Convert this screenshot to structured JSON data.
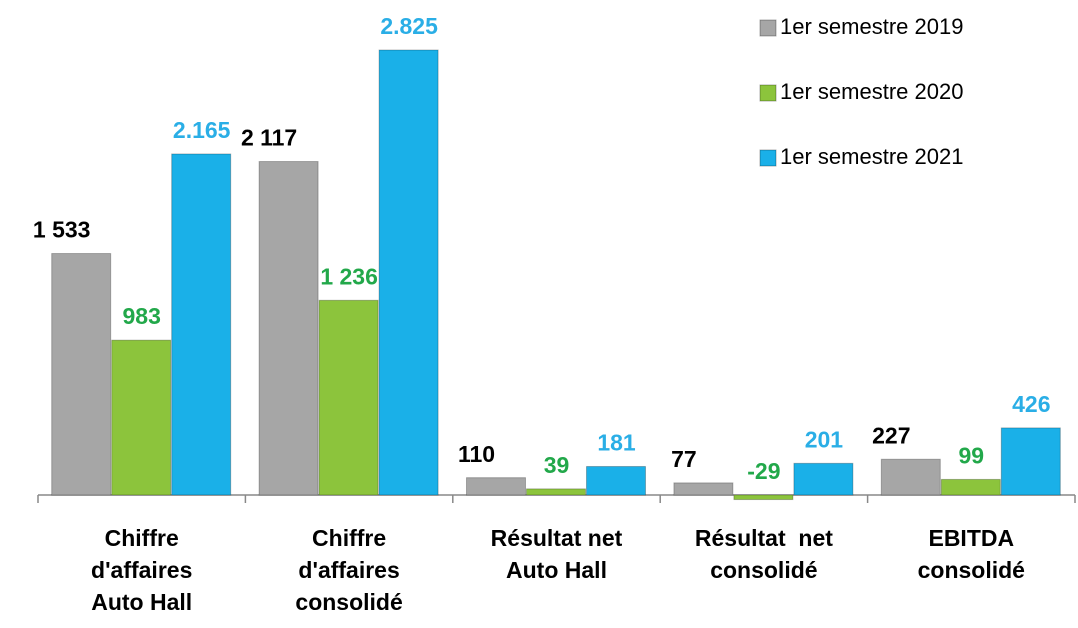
{
  "chart_data": {
    "type": "bar",
    "categories": [
      "Chiffre\nd'affaires\nAuto Hall",
      "Chiffre\nd'affaires\nconsolidé",
      "Résultat net\nAuto Hall",
      "Résultat  net\nconsolidé",
      "EBITDA\nconsolidé"
    ],
    "series": [
      {
        "name": "1er semestre 2019",
        "color": "#a6a6a6",
        "label_color": "#000000",
        "values": [
          1533,
          2117,
          110,
          77,
          227
        ],
        "value_labels": [
          "1 533",
          "2 117",
          "110",
          "77",
          "227"
        ]
      },
      {
        "name": "1er semestre 2020",
        "color": "#8cc43c",
        "label_color": "#22a84a",
        "values": [
          983,
          1236,
          39,
          -29,
          99
        ],
        "value_labels": [
          "983",
          "1 236",
          "39",
          "-29",
          "99"
        ]
      },
      {
        "name": "1er semestre 2021",
        "color": "#1ab0e8",
        "label_color": "#2aaee6",
        "values": [
          2165,
          2825,
          181,
          201,
          426
        ],
        "value_labels": [
          "2.165",
          "2.825",
          "181",
          "201",
          "426"
        ]
      }
    ],
    "legend": "top-right"
  }
}
